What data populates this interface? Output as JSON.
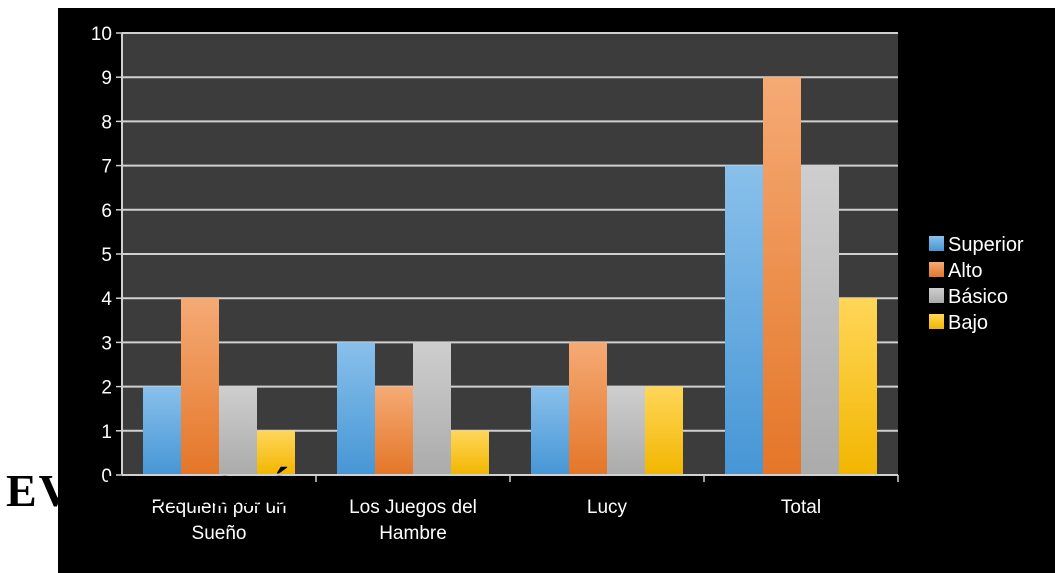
{
  "page_heading": "EVALUACIÓN",
  "chart_data": {
    "type": "bar",
    "title": "",
    "xlabel": "",
    "ylabel": "",
    "ylim": [
      0,
      10
    ],
    "yticks": [
      0,
      1,
      2,
      3,
      4,
      5,
      6,
      7,
      8,
      9,
      10
    ],
    "grid": true,
    "legend_position": "right",
    "categories": [
      [
        "Requiem por un",
        "Sueño"
      ],
      [
        "Los Juegos del",
        "Hambre"
      ],
      [
        "Lucy"
      ],
      [
        "Total"
      ]
    ],
    "series": [
      {
        "name": "Superior",
        "color": "#4a9ee0",
        "values": [
          2,
          3,
          2,
          7
        ]
      },
      {
        "name": "Alto",
        "color": "#f07c2a",
        "values": [
          4,
          2,
          3,
          9
        ]
      },
      {
        "name": "Básico",
        "color": "#b4b4b4",
        "values": [
          2,
          3,
          2,
          7
        ]
      },
      {
        "name": "Bajo",
        "color": "#ffc000",
        "values": [
          1,
          1,
          2,
          4
        ]
      }
    ],
    "plot_background": "#3c3c3c",
    "background": "#000000",
    "gridline_color": "#d0d0d0"
  }
}
